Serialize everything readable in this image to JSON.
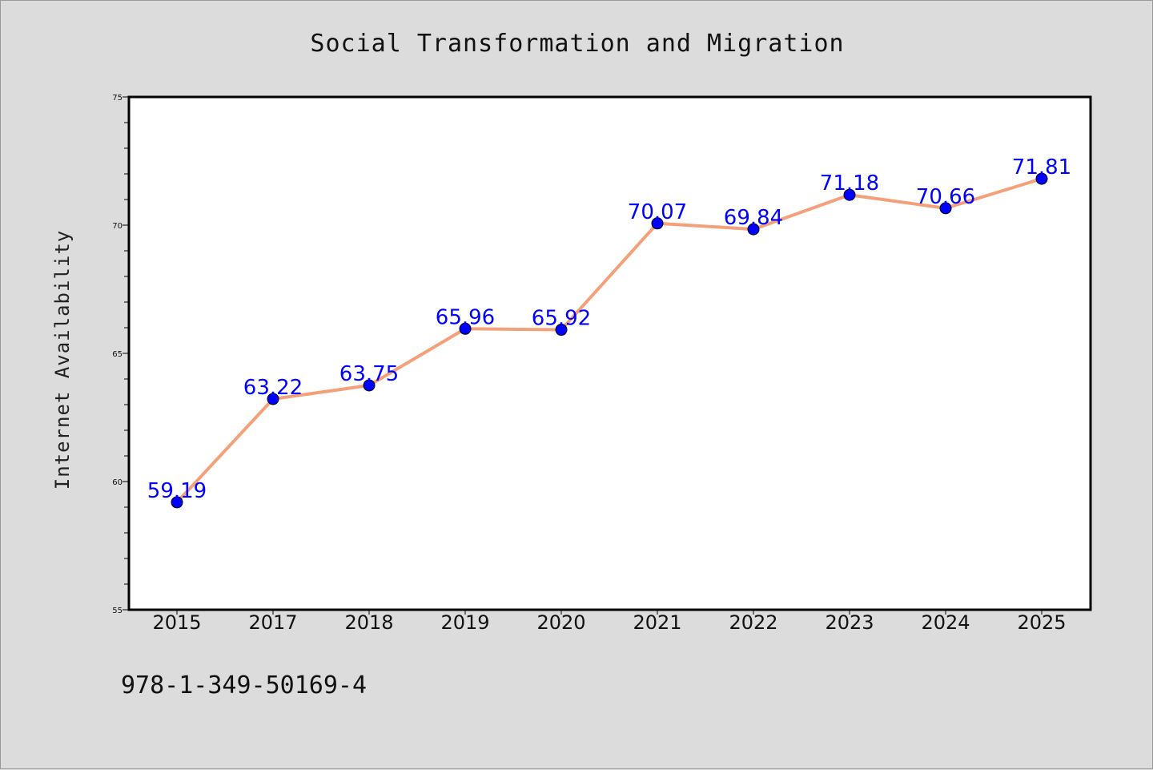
{
  "chart_data": {
    "type": "line",
    "title": "Social Transformation and Migration",
    "ylabel": "Internet Availability",
    "xlabel": "",
    "categories": [
      "2015",
      "2017",
      "2018",
      "2019",
      "2020",
      "2021",
      "2022",
      "2023",
      "2024",
      "2025"
    ],
    "series": [
      {
        "values": [
          59.19,
          63.22,
          63.75,
          65.96,
          65.92,
          70.07,
          69.84,
          71.18,
          70.66,
          71.81
        ],
        "labels": [
          "59.19",
          "63.22",
          "63.75",
          "65.96",
          "65.92",
          "70.07",
          "69.84",
          "71.18",
          "70.66",
          "71.81"
        ]
      }
    ],
    "ylim": [
      55,
      75
    ],
    "yticks": [
      "55",
      "60",
      "65",
      "70",
      "75"
    ],
    "grid": false,
    "line_color": "#f4a07a",
    "marker_color": "#0000ff",
    "label_color": "#0000ff"
  },
  "footer": {
    "text": "978-1-349-50169-4"
  }
}
